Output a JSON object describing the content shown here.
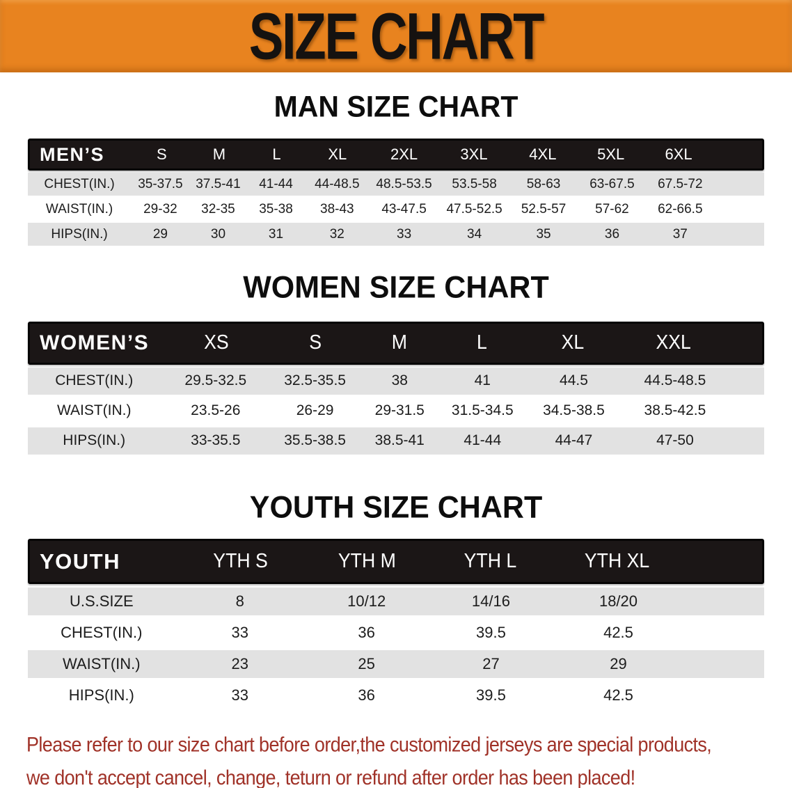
{
  "banner": {
    "title": "SIZE CHART",
    "bg_color": "#E8831F"
  },
  "colors": {
    "header_band": "#1B1616",
    "row_gray": "#E2E2E2",
    "footnote_red": "#A03228"
  },
  "sections": [
    {
      "heading": "MAN SIZE CHART",
      "table": {
        "corner_label": "MEN’S",
        "columns": [
          "S",
          "M",
          "L",
          "XL",
          "2XL",
          "3XL",
          "4XL",
          "5XL",
          "6XL"
        ],
        "rows": [
          {
            "label": "CHEST(IN.)",
            "values": [
              "35-37.5",
              "37.5-41",
              "41-44",
              "44-48.5",
              "48.5-53.5",
              "53.5-58",
              "58-63",
              "63-67.5",
              "67.5-72"
            ]
          },
          {
            "label": "WAIST(IN.)",
            "values": [
              "29-32",
              "32-35",
              "35-38",
              "38-43",
              "43-47.5",
              "47.5-52.5",
              "52.5-57",
              "57-62",
              "62-66.5"
            ]
          },
          {
            "label": "HIPS(IN.)",
            "values": [
              "29",
              "30",
              "31",
              "32",
              "33",
              "34",
              "35",
              "36",
              "37"
            ]
          }
        ]
      }
    },
    {
      "heading": "WOMEN SIZE CHART",
      "table": {
        "corner_label": "WOMEN’S",
        "columns": [
          "XS",
          "S",
          "M",
          "L",
          "XL",
          "XXL"
        ],
        "rows": [
          {
            "label": "CHEST(IN.)",
            "values": [
              "29.5-32.5",
              "32.5-35.5",
              "38",
              "41",
              "44.5",
              "44.5-48.5"
            ]
          },
          {
            "label": "WAIST(IN.)",
            "values": [
              "23.5-26",
              "26-29",
              "29-31.5",
              "31.5-34.5",
              "34.5-38.5",
              "38.5-42.5"
            ]
          },
          {
            "label": "HIPS(IN.)",
            "values": [
              "33-35.5",
              "35.5-38.5",
              "38.5-41",
              "41-44",
              "44-47",
              "47-50"
            ]
          }
        ]
      }
    },
    {
      "heading": "YOUTH SIZE CHART",
      "table": {
        "corner_label": "YOUTH",
        "columns": [
          "YTH S",
          "YTH M",
          "YTH L",
          "YTH XL"
        ],
        "rows": [
          {
            "label": "U.S.SIZE",
            "values": [
              "8",
              "10/12",
              "14/16",
              "18/20"
            ]
          },
          {
            "label": "CHEST(IN.)",
            "values": [
              "33",
              "36",
              "39.5",
              "42.5"
            ]
          },
          {
            "label": "WAIST(IN.)",
            "values": [
              "23",
              "25",
              "27",
              "29"
            ]
          },
          {
            "label": "HIPS(IN.)",
            "values": [
              "33",
              "36",
              "39.5",
              "42.5"
            ]
          }
        ]
      }
    }
  ],
  "footnote": {
    "line1": "Please refer to our size chart before order,the customized jerseys are special products,",
    "line2": "we don't accept cancel, change, teturn or refund after order has been placed!"
  }
}
